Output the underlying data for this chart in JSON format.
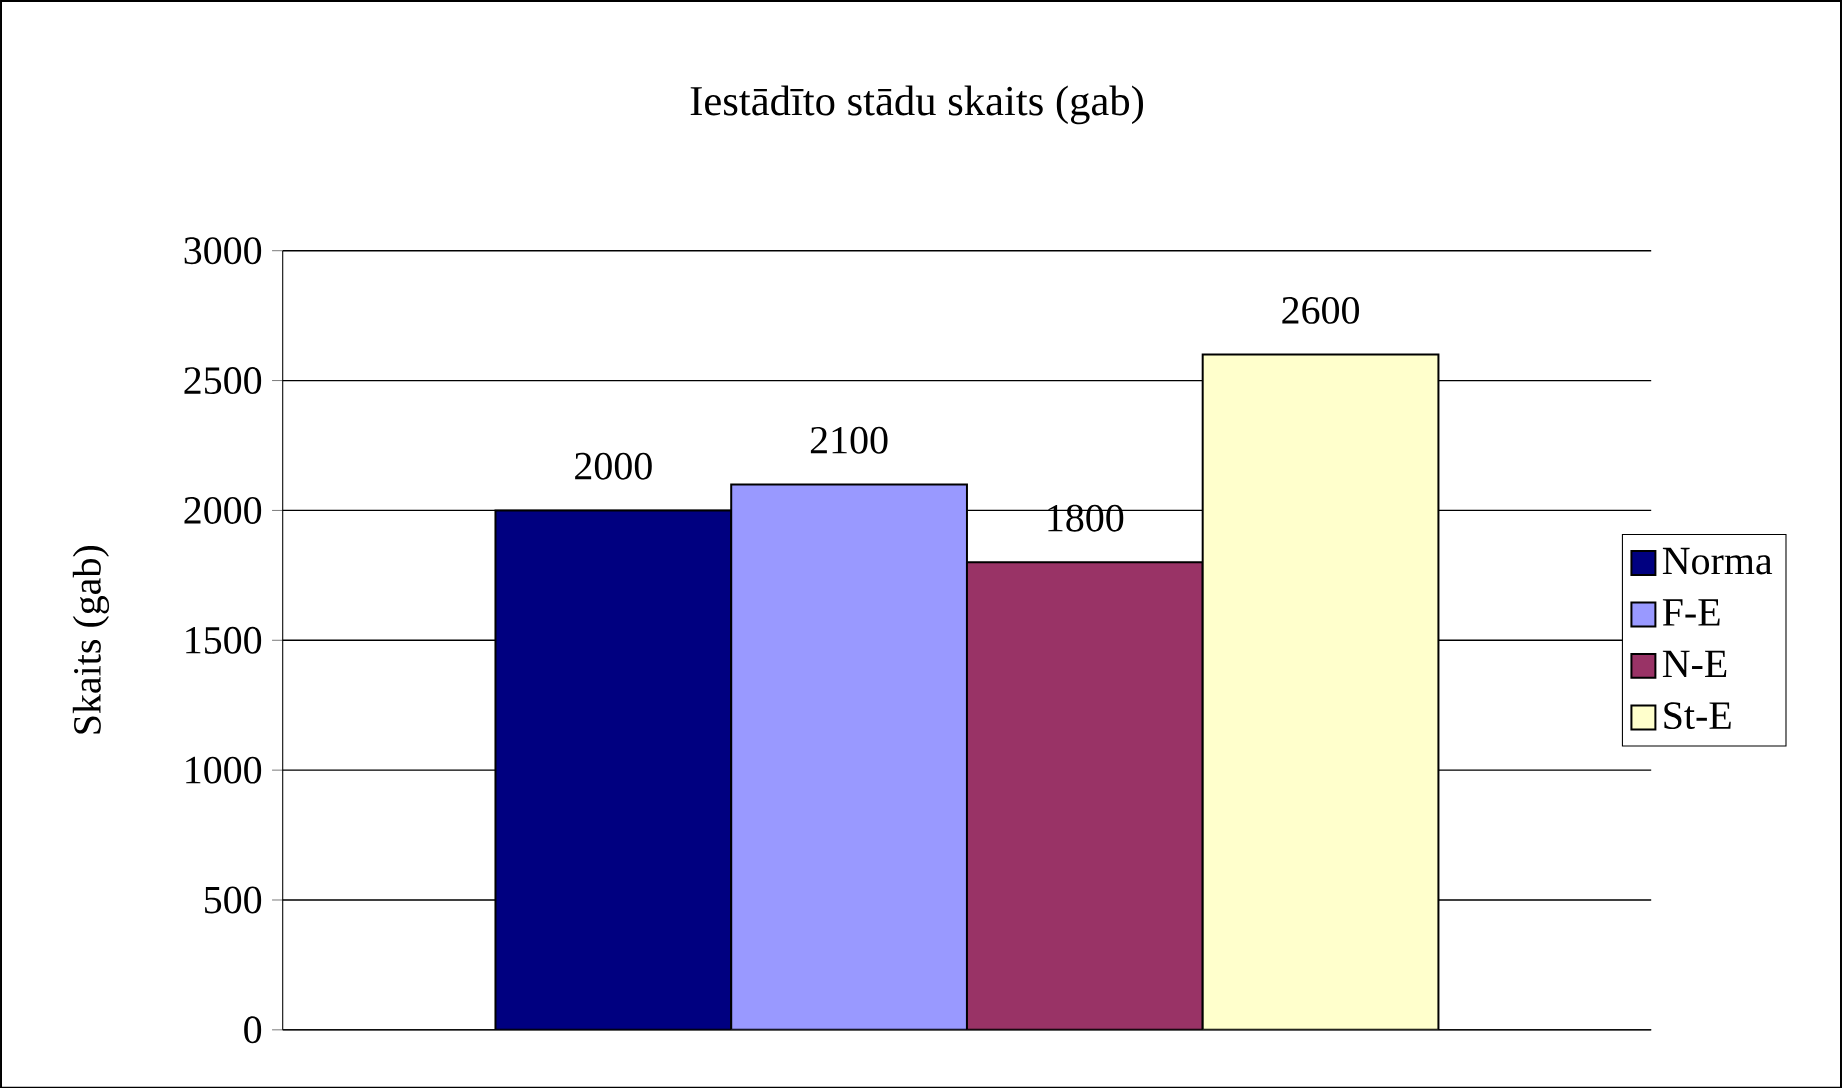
{
  "chart_data": {
    "type": "bar",
    "title": "Iestādīto stādu skaits (gab)",
    "ylabel": "Skaits (gab)",
    "categories": [
      null
    ],
    "series": [
      {
        "name": "Norma",
        "color": "#000080",
        "values": [
          2000
        ]
      },
      {
        "name": "F-E",
        "color": "#9999ff",
        "values": [
          2100
        ]
      },
      {
        "name": "N-E",
        "color": "#993366",
        "values": [
          1800
        ]
      },
      {
        "name": "St-E",
        "color": "#ffffcc",
        "values": [
          2600
        ]
      }
    ],
    "ylim": [
      0,
      3000
    ],
    "yticks": [
      0,
      500,
      1000,
      1500,
      2000,
      2500,
      3000
    ],
    "grid": "y",
    "legend": "right",
    "data_labels": true
  }
}
